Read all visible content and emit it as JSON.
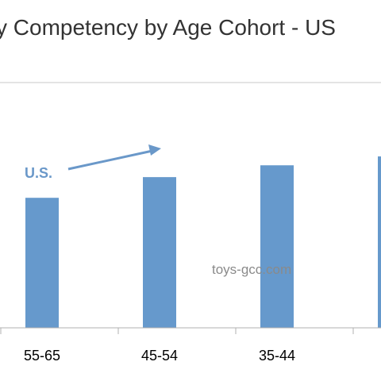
{
  "colors": {
    "bar": "#6699cc",
    "annotation": "#6a98c9",
    "axis": "#b0b0b0",
    "title": "#333333"
  },
  "chart_data": {
    "type": "bar",
    "title": "y Competency by Age Cohort - US",
    "categories": [
      "55-65",
      "45-54",
      "35-44",
      ""
    ],
    "series": [
      {
        "values": [
          44,
          51,
          55,
          58
        ]
      }
    ],
    "ylim": [
      0,
      83
    ],
    "grid": false,
    "legend": "none",
    "annotations": [
      {
        "text": "U.S.",
        "has_arrow": true
      }
    ]
  },
  "watermark": "toys-gcc.com"
}
